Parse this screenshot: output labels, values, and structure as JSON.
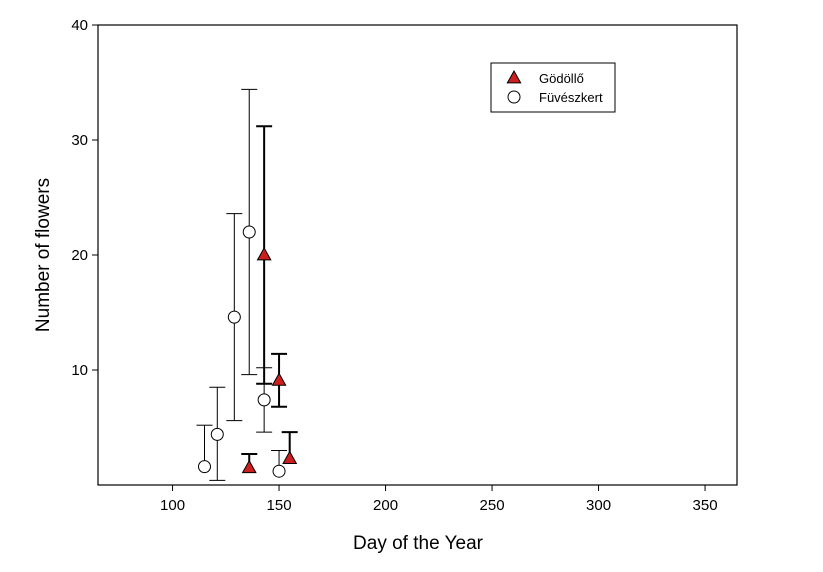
{
  "chart_data": {
    "type": "scatter",
    "xlabel": "Day of the Year",
    "ylabel": "Number of flowers",
    "xlim": [
      65,
      365
    ],
    "ylim": [
      0,
      40
    ],
    "xticks": [
      100,
      150,
      200,
      250,
      300,
      350
    ],
    "yticks": [
      10,
      20,
      30,
      40
    ],
    "grid": false,
    "legend_position": "top-right",
    "series": [
      {
        "name": "Gödöllő",
        "marker": "triangle",
        "color": "#cc1f1f",
        "points": [
          {
            "x": 136,
            "y": 1.5,
            "err_low": 0,
            "err_high": 1.2
          },
          {
            "x": 143,
            "y": 20.0,
            "err_low": 11.2,
            "err_high": 11.2
          },
          {
            "x": 150,
            "y": 9.1,
            "err_low": 2.3,
            "err_high": 2.3
          },
          {
            "x": 155,
            "y": 2.3,
            "err_low": 0,
            "err_high": 2.3
          }
        ]
      },
      {
        "name": "Füvészkert",
        "marker": "circle",
        "color": "#ffffff",
        "points": [
          {
            "x": 115,
            "y": 1.6,
            "err_low": 0,
            "err_high": 3.6
          },
          {
            "x": 121,
            "y": 4.4,
            "err_low": 4.0,
            "err_high": 4.1
          },
          {
            "x": 129,
            "y": 14.6,
            "err_low": 9.0,
            "err_high": 9.0
          },
          {
            "x": 136,
            "y": 22.0,
            "err_low": 12.4,
            "err_high": 12.4
          },
          {
            "x": 143,
            "y": 7.4,
            "err_low": 2.8,
            "err_high": 2.8
          },
          {
            "x": 150,
            "y": 1.2,
            "err_low": 0,
            "err_high": 1.8
          }
        ]
      }
    ]
  }
}
